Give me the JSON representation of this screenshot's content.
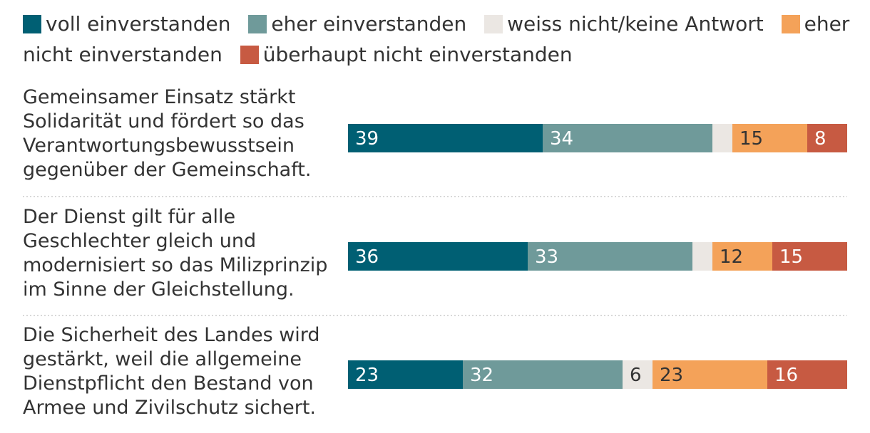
{
  "chart_data": {
    "type": "bar",
    "orientation": "horizontal",
    "stacked": true,
    "unit": "%",
    "legend_position": "top",
    "categories": [
      "Gemeinsamer Einsatz stärkt Solidarität und fördert so das Verantwortungsbewusstsein gegenüber der Gemeinschaft.",
      "Der Dienst gilt für alle Geschlechter gleich und modernisiert so das Milizprinzip im Sinne der Gleichstellung.",
      "Die Sicherheit des Landes wird gestärkt, weil die allgemeine Dienstpflicht den Bestand von Armee und Zivilschutz sichert."
    ],
    "series": [
      {
        "name": "voll einverstanden",
        "color": "#005f73",
        "label_color": "#ffffff",
        "values": [
          39,
          36,
          23
        ]
      },
      {
        "name": "eher einverstanden",
        "color": "#6f9a9a",
        "label_color": "#ffffff",
        "values": [
          34,
          33,
          32
        ]
      },
      {
        "name": "weiss nicht/keine Antwort",
        "color": "#ebe7e3",
        "label_color": "#333333",
        "values": [
          4,
          4,
          6
        ]
      },
      {
        "name": "eher nicht einverstanden",
        "color": "#f4a259",
        "label_color": "#333333",
        "values": [
          15,
          12,
          23
        ]
      },
      {
        "name": "überhaupt nicht einverstanden",
        "color": "#c75a42",
        "label_color": "#ffffff",
        "values": [
          8,
          15,
          16
        ]
      }
    ],
    "data_labels": [
      [
        "39",
        "34",
        "",
        "15",
        "8"
      ],
      [
        "36",
        "33",
        "",
        "12",
        "15"
      ],
      [
        "23",
        "32",
        "6",
        "23",
        "16"
      ]
    ]
  }
}
